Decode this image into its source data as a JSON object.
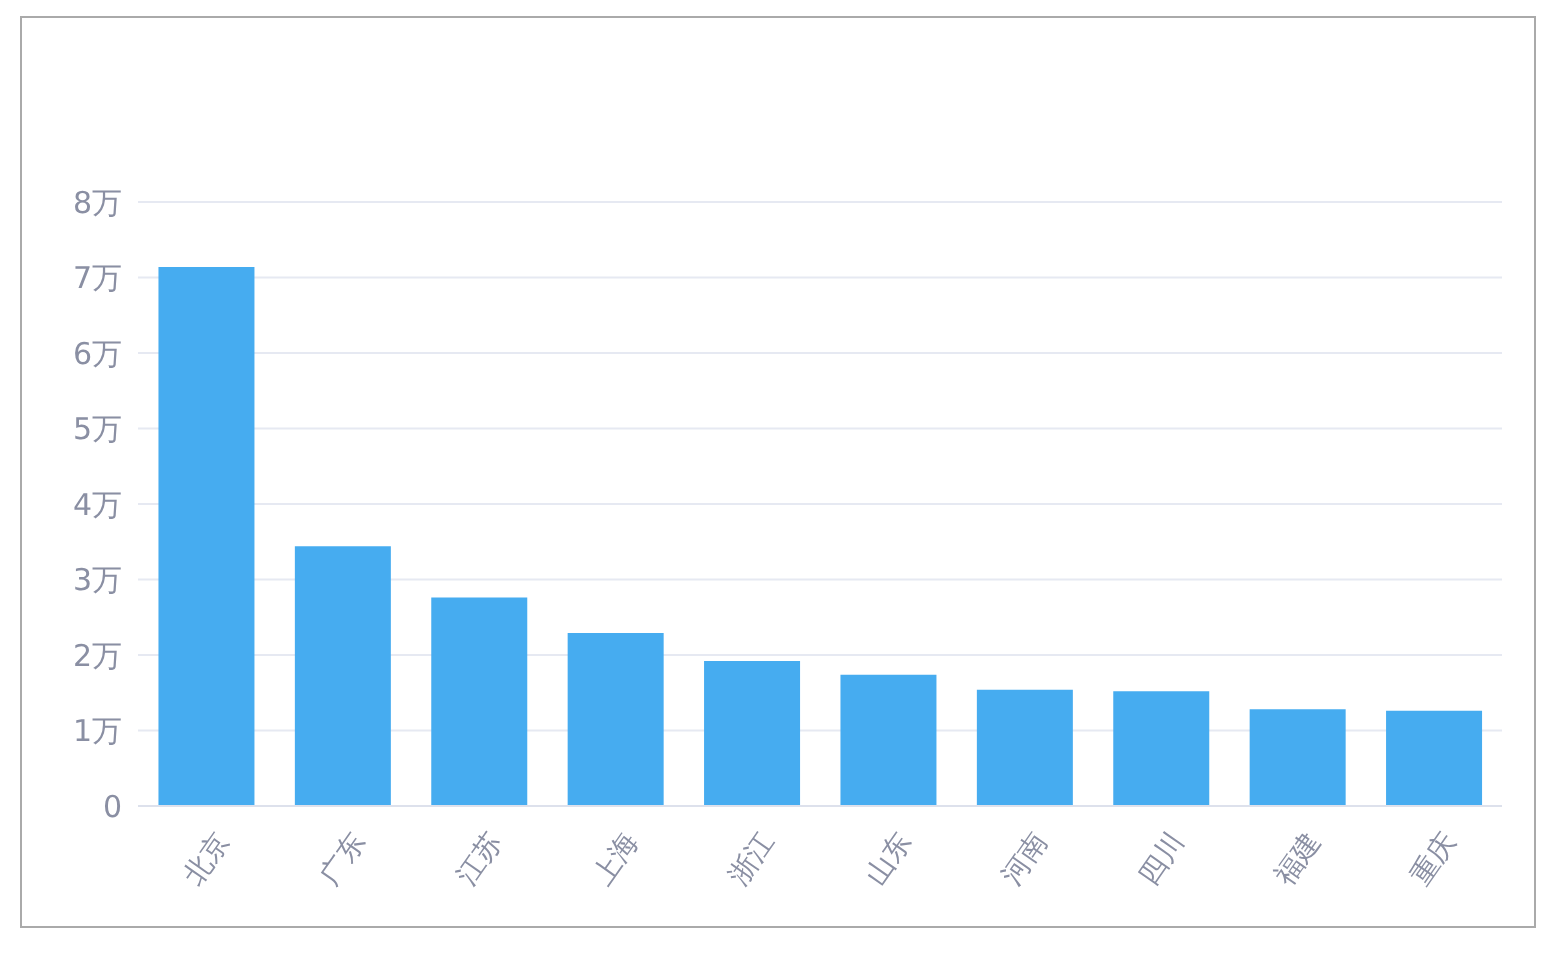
{
  "chart_data": {
    "type": "bar",
    "categories": [
      "北京",
      "广东",
      "江苏",
      "上海",
      "浙江",
      "山东",
      "河南",
      "四川",
      "福建",
      "重庆"
    ],
    "values": [
      7.14,
      3.44,
      2.76,
      2.29,
      1.92,
      1.74,
      1.54,
      1.52,
      1.28,
      1.26
    ],
    "color": "#46acf0",
    "ylim": [
      0,
      8
    ],
    "yticks": [
      0,
      {
        "value": 1,
        "label": "1万"
      },
      {
        "value": 2,
        "label": "2万"
      },
      {
        "value": 3,
        "label": "3万"
      },
      {
        "value": 4,
        "label": "4万"
      },
      {
        "value": 5,
        "label": "5万"
      },
      {
        "value": 6,
        "label": "6万"
      },
      {
        "value": 7,
        "label": "7万"
      },
      {
        "value": 8,
        "label": "8万"
      }
    ],
    "grid": "y",
    "legend": false
  }
}
